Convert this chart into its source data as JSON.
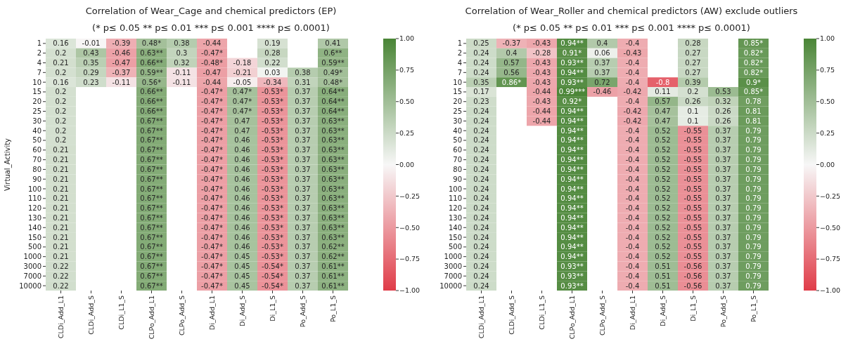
{
  "chart_data": [
    {
      "type": "heatmap",
      "title": "Correlation of Wear_Cage and chemical predictors (EP)",
      "subtitle": "(* p≤ 0.05 ** p≤ 0.01 *** p≤ 0.001 **** p≤ 0.0001)",
      "ylabel": "Virtual_Activity",
      "categories": [
        "CLDi_Add_L1",
        "CLDi_Add_S",
        "CLDi_L1_S",
        "CLPo_Add_L1",
        "CLPo_Add_S",
        "Di_Add_L1",
        "Di_Add_S",
        "Di_L1_S",
        "Po_Add_S",
        "Po_L1_S"
      ],
      "y_categories": [
        "1",
        "2",
        "4",
        "7",
        "10",
        "15",
        "20",
        "25",
        "30",
        "40",
        "50",
        "60",
        "70",
        "80",
        "90",
        "100",
        "110",
        "120",
        "130",
        "140",
        "150",
        "500",
        "1000",
        "3000",
        "7000",
        "10000"
      ],
      "clim": [
        -1,
        1
      ],
      "cticks": [
        {
          "value": 1,
          "label": "1.00"
        },
        {
          "value": 0.75,
          "label": "0.75"
        },
        {
          "value": 0.5,
          "label": "0.50"
        },
        {
          "value": 0.25,
          "label": "0.25"
        },
        {
          "value": 0,
          "label": "0.00"
        },
        {
          "value": -0.25,
          "label": "−0.25"
        },
        {
          "value": -0.5,
          "label": "−0.50"
        },
        {
          "value": -0.75,
          "label": "−0.75"
        },
        {
          "value": -1,
          "label": "−1.00"
        }
      ],
      "cells": [
        [
          0.16,
          -0.01,
          -0.39,
          0.48,
          0.38,
          -0.44,
          null,
          0.19,
          null,
          0.41
        ],
        [
          0.2,
          0.43,
          -0.46,
          0.63,
          0.3,
          -0.47,
          null,
          0.28,
          null,
          0.6
        ],
        [
          0.21,
          0.35,
          -0.47,
          0.66,
          0.32,
          -0.48,
          -0.18,
          0.22,
          null,
          0.59
        ],
        [
          0.2,
          0.29,
          -0.37,
          0.59,
          -0.11,
          -0.47,
          -0.21,
          0.03,
          0.38,
          0.49
        ],
        [
          0.16,
          0.23,
          -0.11,
          0.56,
          -0.11,
          -0.44,
          -0.05,
          -0.34,
          0.31,
          0.48
        ],
        [
          0.2,
          null,
          null,
          0.66,
          null,
          -0.47,
          0.47,
          -0.53,
          0.37,
          0.64
        ],
        [
          0.2,
          null,
          null,
          0.66,
          null,
          -0.47,
          0.47,
          -0.53,
          0.37,
          0.64
        ],
        [
          0.2,
          null,
          null,
          0.66,
          null,
          -0.47,
          0.47,
          -0.53,
          0.37,
          0.64
        ],
        [
          0.2,
          null,
          null,
          0.67,
          null,
          -0.47,
          0.47,
          -0.53,
          0.37,
          0.63
        ],
        [
          0.2,
          null,
          null,
          0.67,
          null,
          -0.47,
          0.47,
          -0.53,
          0.37,
          0.63
        ],
        [
          0.2,
          null,
          null,
          0.67,
          null,
          -0.47,
          0.46,
          -0.53,
          0.37,
          0.63
        ],
        [
          0.21,
          null,
          null,
          0.67,
          null,
          -0.47,
          0.46,
          -0.53,
          0.37,
          0.63
        ],
        [
          0.21,
          null,
          null,
          0.67,
          null,
          -0.47,
          0.46,
          -0.53,
          0.37,
          0.63
        ],
        [
          0.21,
          null,
          null,
          0.67,
          null,
          -0.47,
          0.46,
          -0.53,
          0.37,
          0.63
        ],
        [
          0.21,
          null,
          null,
          0.67,
          null,
          -0.47,
          0.46,
          -0.53,
          0.37,
          0.63
        ],
        [
          0.21,
          null,
          null,
          0.67,
          null,
          -0.47,
          0.46,
          -0.53,
          0.37,
          0.63
        ],
        [
          0.21,
          null,
          null,
          0.67,
          null,
          -0.47,
          0.46,
          -0.53,
          0.37,
          0.63
        ],
        [
          0.21,
          null,
          null,
          0.67,
          null,
          -0.47,
          0.46,
          -0.53,
          0.37,
          0.63
        ],
        [
          0.21,
          null,
          null,
          0.67,
          null,
          -0.47,
          0.46,
          -0.53,
          0.37,
          0.63
        ],
        [
          0.21,
          null,
          null,
          0.67,
          null,
          -0.47,
          0.46,
          -0.53,
          0.37,
          0.63
        ],
        [
          0.21,
          null,
          null,
          0.67,
          null,
          -0.47,
          0.46,
          -0.53,
          0.37,
          0.63
        ],
        [
          0.21,
          null,
          null,
          0.67,
          null,
          -0.47,
          0.46,
          -0.53,
          0.37,
          0.62
        ],
        [
          0.21,
          null,
          null,
          0.67,
          null,
          -0.47,
          0.45,
          -0.53,
          0.37,
          0.62
        ],
        [
          0.22,
          null,
          null,
          0.67,
          null,
          -0.47,
          0.45,
          -0.54,
          0.37,
          0.61
        ],
        [
          0.22,
          null,
          null,
          0.67,
          null,
          -0.47,
          0.45,
          -0.54,
          0.37,
          0.61
        ],
        [
          0.22,
          null,
          null,
          0.67,
          null,
          -0.47,
          0.45,
          -0.54,
          0.37,
          0.61
        ]
      ],
      "cell_labels": [
        [
          "0.16",
          "-0.01",
          "-0.39",
          "0.48*",
          "0.38",
          "-0.44",
          null,
          "0.19",
          null,
          "0.41"
        ],
        [
          "0.2",
          "0.43",
          "-0.46",
          "0.63**",
          "0.3",
          "-0.47*",
          null,
          "0.28",
          null,
          "0.6**"
        ],
        [
          "0.21",
          "0.35",
          "-0.47",
          "0.66**",
          "0.32",
          "-0.48*",
          "-0.18",
          "0.22",
          null,
          "0.59**"
        ],
        [
          "0.2",
          "0.29",
          "-0.37",
          "0.59**",
          "-0.11",
          "-0.47",
          "-0.21",
          "0.03",
          "0.38",
          "0.49*"
        ],
        [
          "0.16",
          "0.23",
          "-0.11",
          "0.56*",
          "-0.11",
          "-0.44",
          "-0.05",
          "-0.34",
          "0.31",
          "0.48*"
        ],
        [
          "0.2",
          null,
          null,
          "0.66**",
          null,
          "-0.47*",
          "0.47*",
          "-0.53*",
          "0.37",
          "0.64**"
        ],
        [
          "0.2",
          null,
          null,
          "0.66**",
          null,
          "-0.47*",
          "0.47*",
          "-0.53*",
          "0.37",
          "0.64**"
        ],
        [
          "0.2",
          null,
          null,
          "0.66**",
          null,
          "-0.47*",
          "0.47*",
          "-0.53*",
          "0.37",
          "0.64**"
        ],
        [
          "0.2",
          null,
          null,
          "0.67**",
          null,
          "-0.47*",
          "0.47",
          "-0.53*",
          "0.37",
          "0.63**"
        ],
        [
          "0.2",
          null,
          null,
          "0.67**",
          null,
          "-0.47*",
          "0.47",
          "-0.53*",
          "0.37",
          "0.63**"
        ],
        [
          "0.2",
          null,
          null,
          "0.67**",
          null,
          "-0.47*",
          "0.46",
          "-0.53*",
          "0.37",
          "0.63**"
        ],
        [
          "0.21",
          null,
          null,
          "0.67**",
          null,
          "-0.47*",
          "0.46",
          "-0.53*",
          "0.37",
          "0.63**"
        ],
        [
          "0.21",
          null,
          null,
          "0.67**",
          null,
          "-0.47*",
          "0.46",
          "-0.53*",
          "0.37",
          "0.63**"
        ],
        [
          "0.21",
          null,
          null,
          "0.67**",
          null,
          "-0.47*",
          "0.46",
          "-0.53*",
          "0.37",
          "0.63**"
        ],
        [
          "0.21",
          null,
          null,
          "0.67**",
          null,
          "-0.47*",
          "0.46",
          "-0.53*",
          "0.37",
          "0.63**"
        ],
        [
          "0.21",
          null,
          null,
          "0.67**",
          null,
          "-0.47*",
          "0.46",
          "-0.53*",
          "0.37",
          "0.63**"
        ],
        [
          "0.21",
          null,
          null,
          "0.67**",
          null,
          "-0.47*",
          "0.46",
          "-0.53*",
          "0.37",
          "0.63**"
        ],
        [
          "0.21",
          null,
          null,
          "0.67**",
          null,
          "-0.47*",
          "0.46",
          "-0.53*",
          "0.37",
          "0.63**"
        ],
        [
          "0.21",
          null,
          null,
          "0.67**",
          null,
          "-0.47*",
          "0.46",
          "-0.53*",
          "0.37",
          "0.63**"
        ],
        [
          "0.21",
          null,
          null,
          "0.67**",
          null,
          "-0.47*",
          "0.46",
          "-0.53*",
          "0.37",
          "0.63**"
        ],
        [
          "0.21",
          null,
          null,
          "0.67**",
          null,
          "-0.47*",
          "0.46",
          "-0.53*",
          "0.37",
          "0.63**"
        ],
        [
          "0.21",
          null,
          null,
          "0.67**",
          null,
          "-0.47*",
          "0.46",
          "-0.53*",
          "0.37",
          "0.62**"
        ],
        [
          "0.21",
          null,
          null,
          "0.67**",
          null,
          "-0.47*",
          "0.45",
          "-0.53*",
          "0.37",
          "0.62**"
        ],
        [
          "0.22",
          null,
          null,
          "0.67**",
          null,
          "-0.47*",
          "0.45",
          "-0.54*",
          "0.37",
          "0.61**"
        ],
        [
          "0.22",
          null,
          null,
          "0.67**",
          null,
          "-0.47*",
          "0.45",
          "-0.54*",
          "0.37",
          "0.61**"
        ],
        [
          "0.22",
          null,
          null,
          "0.67**",
          null,
          "-0.47*",
          "0.45",
          "-0.54*",
          "0.37",
          "0.61**"
        ]
      ]
    },
    {
      "type": "heatmap",
      "title": "Correlation of Wear_Roller and chemical predictors (AW) exclude outliers",
      "subtitle": "(* p≤ 0.05 ** p≤ 0.01 *** p≤ 0.001 **** p≤ 0.0001)",
      "categories": [
        "CLDi_Add_L1",
        "CLDi_Add_S",
        "CLDi_L1_S",
        "CLPo_Add_L1",
        "CLPo_Add_S",
        "Di_Add_L1",
        "Di_Add_S",
        "Di_L1_S",
        "Po_Add_S",
        "Po_L1_S"
      ],
      "y_categories": [
        "1",
        "2",
        "4",
        "7",
        "10",
        "15",
        "20",
        "25",
        "30",
        "40",
        "50",
        "60",
        "70",
        "80",
        "90",
        "100",
        "110",
        "120",
        "130",
        "140",
        "150",
        "500",
        "1000",
        "3000",
        "7000",
        "10000"
      ],
      "clim": [
        -1,
        1
      ],
      "cticks": [
        {
          "value": 1,
          "label": "1.00"
        },
        {
          "value": 0.75,
          "label": "0.75"
        },
        {
          "value": 0.5,
          "label": "0.50"
        },
        {
          "value": 0.25,
          "label": "0.25"
        },
        {
          "value": 0,
          "label": "0.00"
        },
        {
          "value": -0.25,
          "label": "−0.25"
        },
        {
          "value": -0.5,
          "label": "−0.50"
        },
        {
          "value": -0.75,
          "label": "−0.75"
        },
        {
          "value": -1,
          "label": "−1.00"
        }
      ],
      "cells": [
        [
          0.25,
          -0.37,
          -0.43,
          0.94,
          0.4,
          -0.4,
          null,
          0.28,
          null,
          0.85
        ],
        [
          0.24,
          0.4,
          -0.28,
          0.91,
          0.06,
          -0.43,
          null,
          0.27,
          null,
          0.82
        ],
        [
          0.24,
          0.57,
          -0.43,
          0.93,
          0.37,
          -0.4,
          null,
          0.27,
          null,
          0.82
        ],
        [
          0.24,
          0.56,
          -0.43,
          0.94,
          0.37,
          -0.4,
          null,
          0.27,
          null,
          0.82
        ],
        [
          0.35,
          0.86,
          -0.43,
          0.93,
          0.72,
          -0.4,
          -0.8,
          0.39,
          null,
          0.9
        ],
        [
          0.17,
          null,
          -0.44,
          0.99,
          -0.46,
          -0.42,
          0.11,
          0.2,
          0.53,
          0.85
        ],
        [
          0.23,
          null,
          -0.43,
          0.92,
          null,
          -0.4,
          0.57,
          0.26,
          0.32,
          0.78
        ],
        [
          0.24,
          null,
          -0.44,
          0.94,
          null,
          -0.42,
          0.47,
          0.1,
          0.26,
          0.81
        ],
        [
          0.24,
          null,
          -0.44,
          0.94,
          null,
          -0.42,
          0.47,
          0.1,
          0.26,
          0.81
        ],
        [
          0.24,
          null,
          null,
          0.94,
          null,
          -0.4,
          0.52,
          -0.55,
          0.37,
          0.79
        ],
        [
          0.24,
          null,
          null,
          0.94,
          null,
          -0.4,
          0.52,
          -0.55,
          0.37,
          0.79
        ],
        [
          0.24,
          null,
          null,
          0.94,
          null,
          -0.4,
          0.52,
          -0.55,
          0.37,
          0.79
        ],
        [
          0.24,
          null,
          null,
          0.94,
          null,
          -0.4,
          0.52,
          -0.55,
          0.37,
          0.79
        ],
        [
          0.24,
          null,
          null,
          0.94,
          null,
          -0.4,
          0.52,
          -0.55,
          0.37,
          0.79
        ],
        [
          0.24,
          null,
          null,
          0.94,
          null,
          -0.4,
          0.52,
          -0.55,
          0.37,
          0.79
        ],
        [
          0.24,
          null,
          null,
          0.94,
          null,
          -0.4,
          0.52,
          -0.55,
          0.37,
          0.79
        ],
        [
          0.24,
          null,
          null,
          0.94,
          null,
          -0.4,
          0.52,
          -0.55,
          0.37,
          0.79
        ],
        [
          0.24,
          null,
          null,
          0.94,
          null,
          -0.4,
          0.52,
          -0.55,
          0.37,
          0.79
        ],
        [
          0.24,
          null,
          null,
          0.94,
          null,
          -0.4,
          0.52,
          -0.55,
          0.37,
          0.79
        ],
        [
          0.24,
          null,
          null,
          0.94,
          null,
          -0.4,
          0.52,
          -0.55,
          0.37,
          0.79
        ],
        [
          0.24,
          null,
          null,
          0.94,
          null,
          -0.4,
          0.52,
          -0.55,
          0.37,
          0.79
        ],
        [
          0.24,
          null,
          null,
          0.94,
          null,
          -0.4,
          0.52,
          -0.55,
          0.37,
          0.79
        ],
        [
          0.24,
          null,
          null,
          0.94,
          null,
          -0.4,
          0.52,
          -0.55,
          0.37,
          0.79
        ],
        [
          0.24,
          null,
          null,
          0.93,
          null,
          -0.4,
          0.51,
          -0.56,
          0.37,
          0.79
        ],
        [
          0.24,
          null,
          null,
          0.93,
          null,
          -0.4,
          0.51,
          -0.56,
          0.37,
          0.79
        ],
        [
          0.24,
          null,
          null,
          0.93,
          null,
          -0.4,
          0.51,
          -0.56,
          0.37,
          0.79
        ]
      ],
      "cell_labels": [
        [
          "0.25",
          "-0.37",
          "-0.43",
          "0.94**",
          "0.4",
          "-0.4",
          null,
          "0.28",
          null,
          "0.85*"
        ],
        [
          "0.24",
          "0.4",
          "-0.28",
          "0.91*",
          "0.06",
          "-0.43",
          null,
          "0.27",
          null,
          "0.82*"
        ],
        [
          "0.24",
          "0.57",
          "-0.43",
          "0.93**",
          "0.37",
          "-0.4",
          null,
          "0.27",
          null,
          "0.82*"
        ],
        [
          "0.24",
          "0.56",
          "-0.43",
          "0.94**",
          "0.37",
          "-0.4",
          null,
          "0.27",
          null,
          "0.82*"
        ],
        [
          "0.35",
          "0.86*",
          "-0.43",
          "0.93**",
          "0.72",
          "-0.4",
          "-0.8",
          "0.39",
          null,
          "0.9*"
        ],
        [
          "0.17",
          null,
          "-0.44",
          "0.99***",
          "-0.46",
          "-0.42",
          "0.11",
          "0.2",
          "0.53",
          "0.85*"
        ],
        [
          "0.23",
          null,
          "-0.43",
          "0.92*",
          null,
          "-0.4",
          "0.57",
          "0.26",
          "0.32",
          "0.78"
        ],
        [
          "0.24",
          null,
          "-0.44",
          "0.94**",
          null,
          "-0.42",
          "0.47",
          "0.1",
          "0.26",
          "0.81"
        ],
        [
          "0.24",
          null,
          "-0.44",
          "0.94**",
          null,
          "-0.42",
          "0.47",
          "0.1",
          "0.26",
          "0.81"
        ],
        [
          "0.24",
          null,
          null,
          "0.94**",
          null,
          "-0.4",
          "0.52",
          "-0.55",
          "0.37",
          "0.79"
        ],
        [
          "0.24",
          null,
          null,
          "0.94**",
          null,
          "-0.4",
          "0.52",
          "-0.55",
          "0.37",
          "0.79"
        ],
        [
          "0.24",
          null,
          null,
          "0.94**",
          null,
          "-0.4",
          "0.52",
          "-0.55",
          "0.37",
          "0.79"
        ],
        [
          "0.24",
          null,
          null,
          "0.94**",
          null,
          "-0.4",
          "0.52",
          "-0.55",
          "0.37",
          "0.79"
        ],
        [
          "0.24",
          null,
          null,
          "0.94**",
          null,
          "-0.4",
          "0.52",
          "-0.55",
          "0.37",
          "0.79"
        ],
        [
          "0.24",
          null,
          null,
          "0.94**",
          null,
          "-0.4",
          "0.52",
          "-0.55",
          "0.37",
          "0.79"
        ],
        [
          "0.24",
          null,
          null,
          "0.94**",
          null,
          "-0.4",
          "0.52",
          "-0.55",
          "0.37",
          "0.79"
        ],
        [
          "0.24",
          null,
          null,
          "0.94**",
          null,
          "-0.4",
          "0.52",
          "-0.55",
          "0.37",
          "0.79"
        ],
        [
          "0.24",
          null,
          null,
          "0.94**",
          null,
          "-0.4",
          "0.52",
          "-0.55",
          "0.37",
          "0.79"
        ],
        [
          "0.24",
          null,
          null,
          "0.94**",
          null,
          "-0.4",
          "0.52",
          "-0.55",
          "0.37",
          "0.79"
        ],
        [
          "0.24",
          null,
          null,
          "0.94**",
          null,
          "-0.4",
          "0.52",
          "-0.55",
          "0.37",
          "0.79"
        ],
        [
          "0.24",
          null,
          null,
          "0.94**",
          null,
          "-0.4",
          "0.52",
          "-0.55",
          "0.37",
          "0.79"
        ],
        [
          "0.24",
          null,
          null,
          "0.94**",
          null,
          "-0.4",
          "0.52",
          "-0.55",
          "0.37",
          "0.79"
        ],
        [
          "0.24",
          null,
          null,
          "0.94**",
          null,
          "-0.4",
          "0.52",
          "-0.55",
          "0.37",
          "0.79"
        ],
        [
          "0.24",
          null,
          null,
          "0.93**",
          null,
          "-0.4",
          "0.51",
          "-0.56",
          "0.37",
          "0.79"
        ],
        [
          "0.24",
          null,
          null,
          "0.93**",
          null,
          "-0.4",
          "0.51",
          "-0.56",
          "0.37",
          "0.79"
        ],
        [
          "0.24",
          null,
          null,
          "0.93**",
          null,
          "-0.4",
          "0.51",
          "-0.56",
          "0.37",
          "0.79"
        ]
      ]
    }
  ]
}
